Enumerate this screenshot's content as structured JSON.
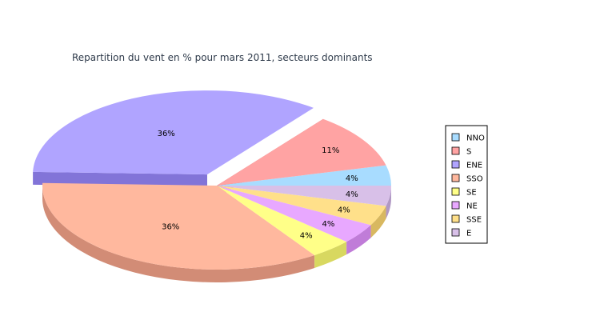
{
  "chart_data": {
    "type": "pie",
    "title": "Repartition du vent en % pour mars 2011, secteurs dominants",
    "slices": [
      {
        "name": "NNO",
        "value": 4,
        "label": "4%",
        "color": "#a8dcff",
        "side_color": "#80b8de"
      },
      {
        "name": "S",
        "value": 11,
        "label": "11%",
        "color": "#ffa3a3",
        "side_color": "#d27272"
      },
      {
        "name": "ENE",
        "value": 36,
        "label": "36%",
        "color": "#b0a4ff",
        "side_color": "#8274d8"
      },
      {
        "name": "SSO",
        "value": 36,
        "label": "36%",
        "color": "#ffb89e",
        "side_color": "#d28c76"
      },
      {
        "name": "SE",
        "value": 4,
        "label": "4%",
        "color": "#ffff88",
        "side_color": "#d8d860"
      },
      {
        "name": "NE",
        "value": 4,
        "label": "4%",
        "color": "#e8a8ff",
        "side_color": "#c07cd8"
      },
      {
        "name": "SSE",
        "value": 4,
        "label": "4%",
        "color": "#ffe08a",
        "side_color": "#d8b860"
      },
      {
        "name": "E",
        "value": 4,
        "label": "4%",
        "color": "#d8c0e8",
        "side_color": "#b098c4"
      }
    ],
    "exploded_slice": "ENE",
    "legend_position": "right",
    "style": "3d"
  }
}
